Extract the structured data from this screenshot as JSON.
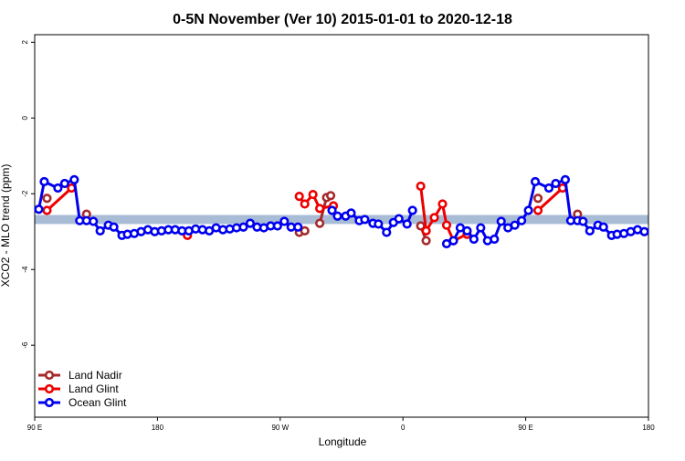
{
  "chart_data": {
    "type": "line",
    "title": "0-5N November (Ver 10)   2015-01-01 to 2020-12-18",
    "xlabel": "Longitude",
    "ylabel": "XCO2 - MLO trend (ppm)",
    "xlim": [
      90,
      540
    ],
    "ylim": [
      -7.9,
      2.2
    ],
    "xticks": [
      {
        "value": 90,
        "label": "90 E"
      },
      180,
      {
        "value": 270,
        "label": "90 W"
      },
      {
        "value": 360,
        "label": "0"
      },
      {
        "value": 450,
        "label": "90 E"
      },
      {
        "value": 540,
        "label": "180"
      }
    ],
    "yticks": [
      -6,
      -4,
      -2,
      0,
      2
    ],
    "reference_band": [
      -2.8,
      -2.56
    ],
    "band_color": "#a9bcd6",
    "legend": "bottom-left",
    "series": [
      {
        "name": "Land Nadir",
        "color": "#a52a2a",
        "x": [
          99,
          110,
          128,
          200,
          284,
          288,
          293,
          299,
          304,
          307,
          320,
          373,
          377,
          420,
          459,
          470,
          488
        ],
        "values": [
          -2.12,
          null,
          -2.54,
          null,
          -3.02,
          -2.98,
          null,
          -2.78,
          -2.1,
          -2.05,
          null,
          -2.85,
          -3.24,
          null,
          -2.12,
          null,
          -2.54
        ]
      },
      {
        "name": "Land Glint",
        "color": "#ee0000",
        "x": [
          99,
          117,
          150,
          202,
          240,
          284,
          288,
          294,
          299,
          309,
          340,
          373,
          377,
          383,
          389,
          392,
          397,
          407,
          430,
          459,
          477
        ],
        "values": [
          -2.44,
          -1.85,
          null,
          -3.1,
          null,
          -2.07,
          -2.27,
          -2.02,
          -2.39,
          -2.32,
          null,
          -1.8,
          -2.98,
          -2.63,
          -2.27,
          -2.83,
          -3.24,
          -3.07,
          null,
          -2.44,
          -1.85
        ]
      },
      {
        "name": "Ocean Glint",
        "color": "#0000ee",
        "x": [
          93,
          97,
          107,
          112,
          119,
          123,
          128,
          133,
          138,
          144,
          148,
          154,
          158,
          163,
          168,
          173,
          178,
          183,
          188,
          193,
          198,
          203,
          208,
          213,
          218,
          223,
          228,
          233,
          238,
          243,
          248,
          253,
          258,
          263,
          268,
          273,
          278,
          283,
          295,
          308,
          312,
          318,
          322,
          328,
          332,
          338,
          342,
          348,
          353,
          357,
          363,
          367,
          380,
          392,
          397,
          402,
          407,
          412,
          417,
          422,
          427,
          432,
          437,
          442,
          447,
          452,
          457,
          467,
          472,
          479,
          483,
          488,
          492,
          497,
          503,
          507,
          513,
          517,
          522,
          527,
          532,
          537
        ],
        "values": [
          -2.41,
          -1.68,
          -1.85,
          -1.73,
          -1.63,
          -2.71,
          -2.71,
          -2.73,
          -2.98,
          -2.83,
          -2.88,
          -3.1,
          -3.07,
          -3.05,
          -3.0,
          -2.95,
          -3.0,
          -2.98,
          -2.95,
          -2.95,
          -2.98,
          -2.98,
          -2.93,
          -2.95,
          -2.98,
          -2.9,
          -2.95,
          -2.93,
          -2.9,
          -2.88,
          -2.78,
          -2.88,
          -2.9,
          -2.85,
          -2.85,
          -2.73,
          -2.88,
          -2.88,
          null,
          -2.44,
          -2.59,
          -2.59,
          -2.51,
          -2.71,
          -2.68,
          -2.78,
          -2.8,
          -3.02,
          -2.76,
          -2.66,
          -2.8,
          -2.44,
          null,
          -3.32,
          -3.24,
          -2.9,
          -2.98,
          -3.2,
          -2.9,
          -3.24,
          -3.2,
          -2.73,
          -2.9,
          -2.83,
          -2.71,
          -2.44,
          -1.68,
          -1.85,
          -1.73,
          -1.63,
          -2.71,
          -2.71,
          -2.73,
          -2.98,
          -2.83,
          -2.88,
          -3.1,
          -3.07,
          -3.05,
          -3.0,
          -2.95,
          -3.0
        ]
      }
    ]
  }
}
